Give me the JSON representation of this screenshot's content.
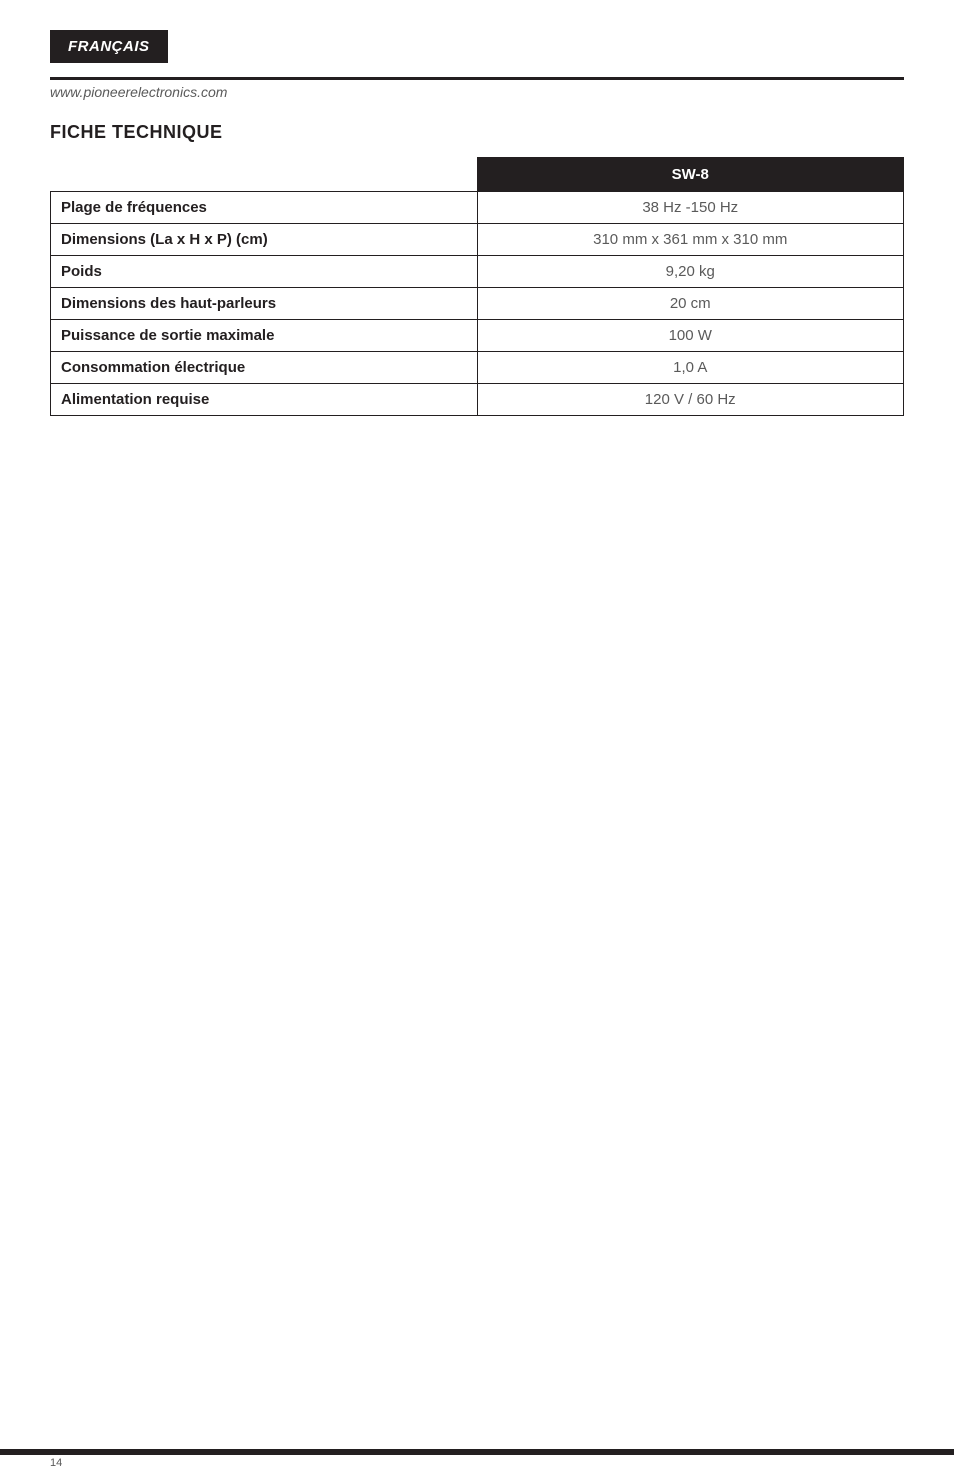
{
  "language_tag": "FRANÇAIS",
  "site_url": "www.pioneerelectronics.com",
  "section_title": "FICHE TECHNIQUE",
  "table": {
    "model_header": "SW-8",
    "label_col_width_pct": 50,
    "value_col_width_pct": 50,
    "rows": [
      {
        "label": "Plage de fréquences",
        "value": "38 Hz -150 Hz"
      },
      {
        "label": "Dimensions (La x H x P) (cm)",
        "value": "310 mm x 361 mm x 310 mm"
      },
      {
        "label": "Poids",
        "value": "9,20 kg"
      },
      {
        "label": "Dimensions des haut-parleurs",
        "value": "20 cm"
      },
      {
        "label": "Puissance de sortie maximale",
        "value": "100 W"
      },
      {
        "label": "Consommation électrique",
        "value": "1,0 A"
      },
      {
        "label": "Alimentation requise",
        "value": "120 V / 60 Hz"
      }
    ]
  },
  "page_number": "14",
  "colors": {
    "text_primary": "#231f20",
    "text_secondary": "#5a5a5a",
    "background": "#ffffff",
    "accent_dark": "#231f20",
    "white": "#ffffff"
  },
  "typography": {
    "lang_tag_fontsize": 15,
    "site_url_fontsize": 14,
    "section_title_fontsize": 18,
    "table_fontsize": 15,
    "pageno_fontsize": 11
  }
}
